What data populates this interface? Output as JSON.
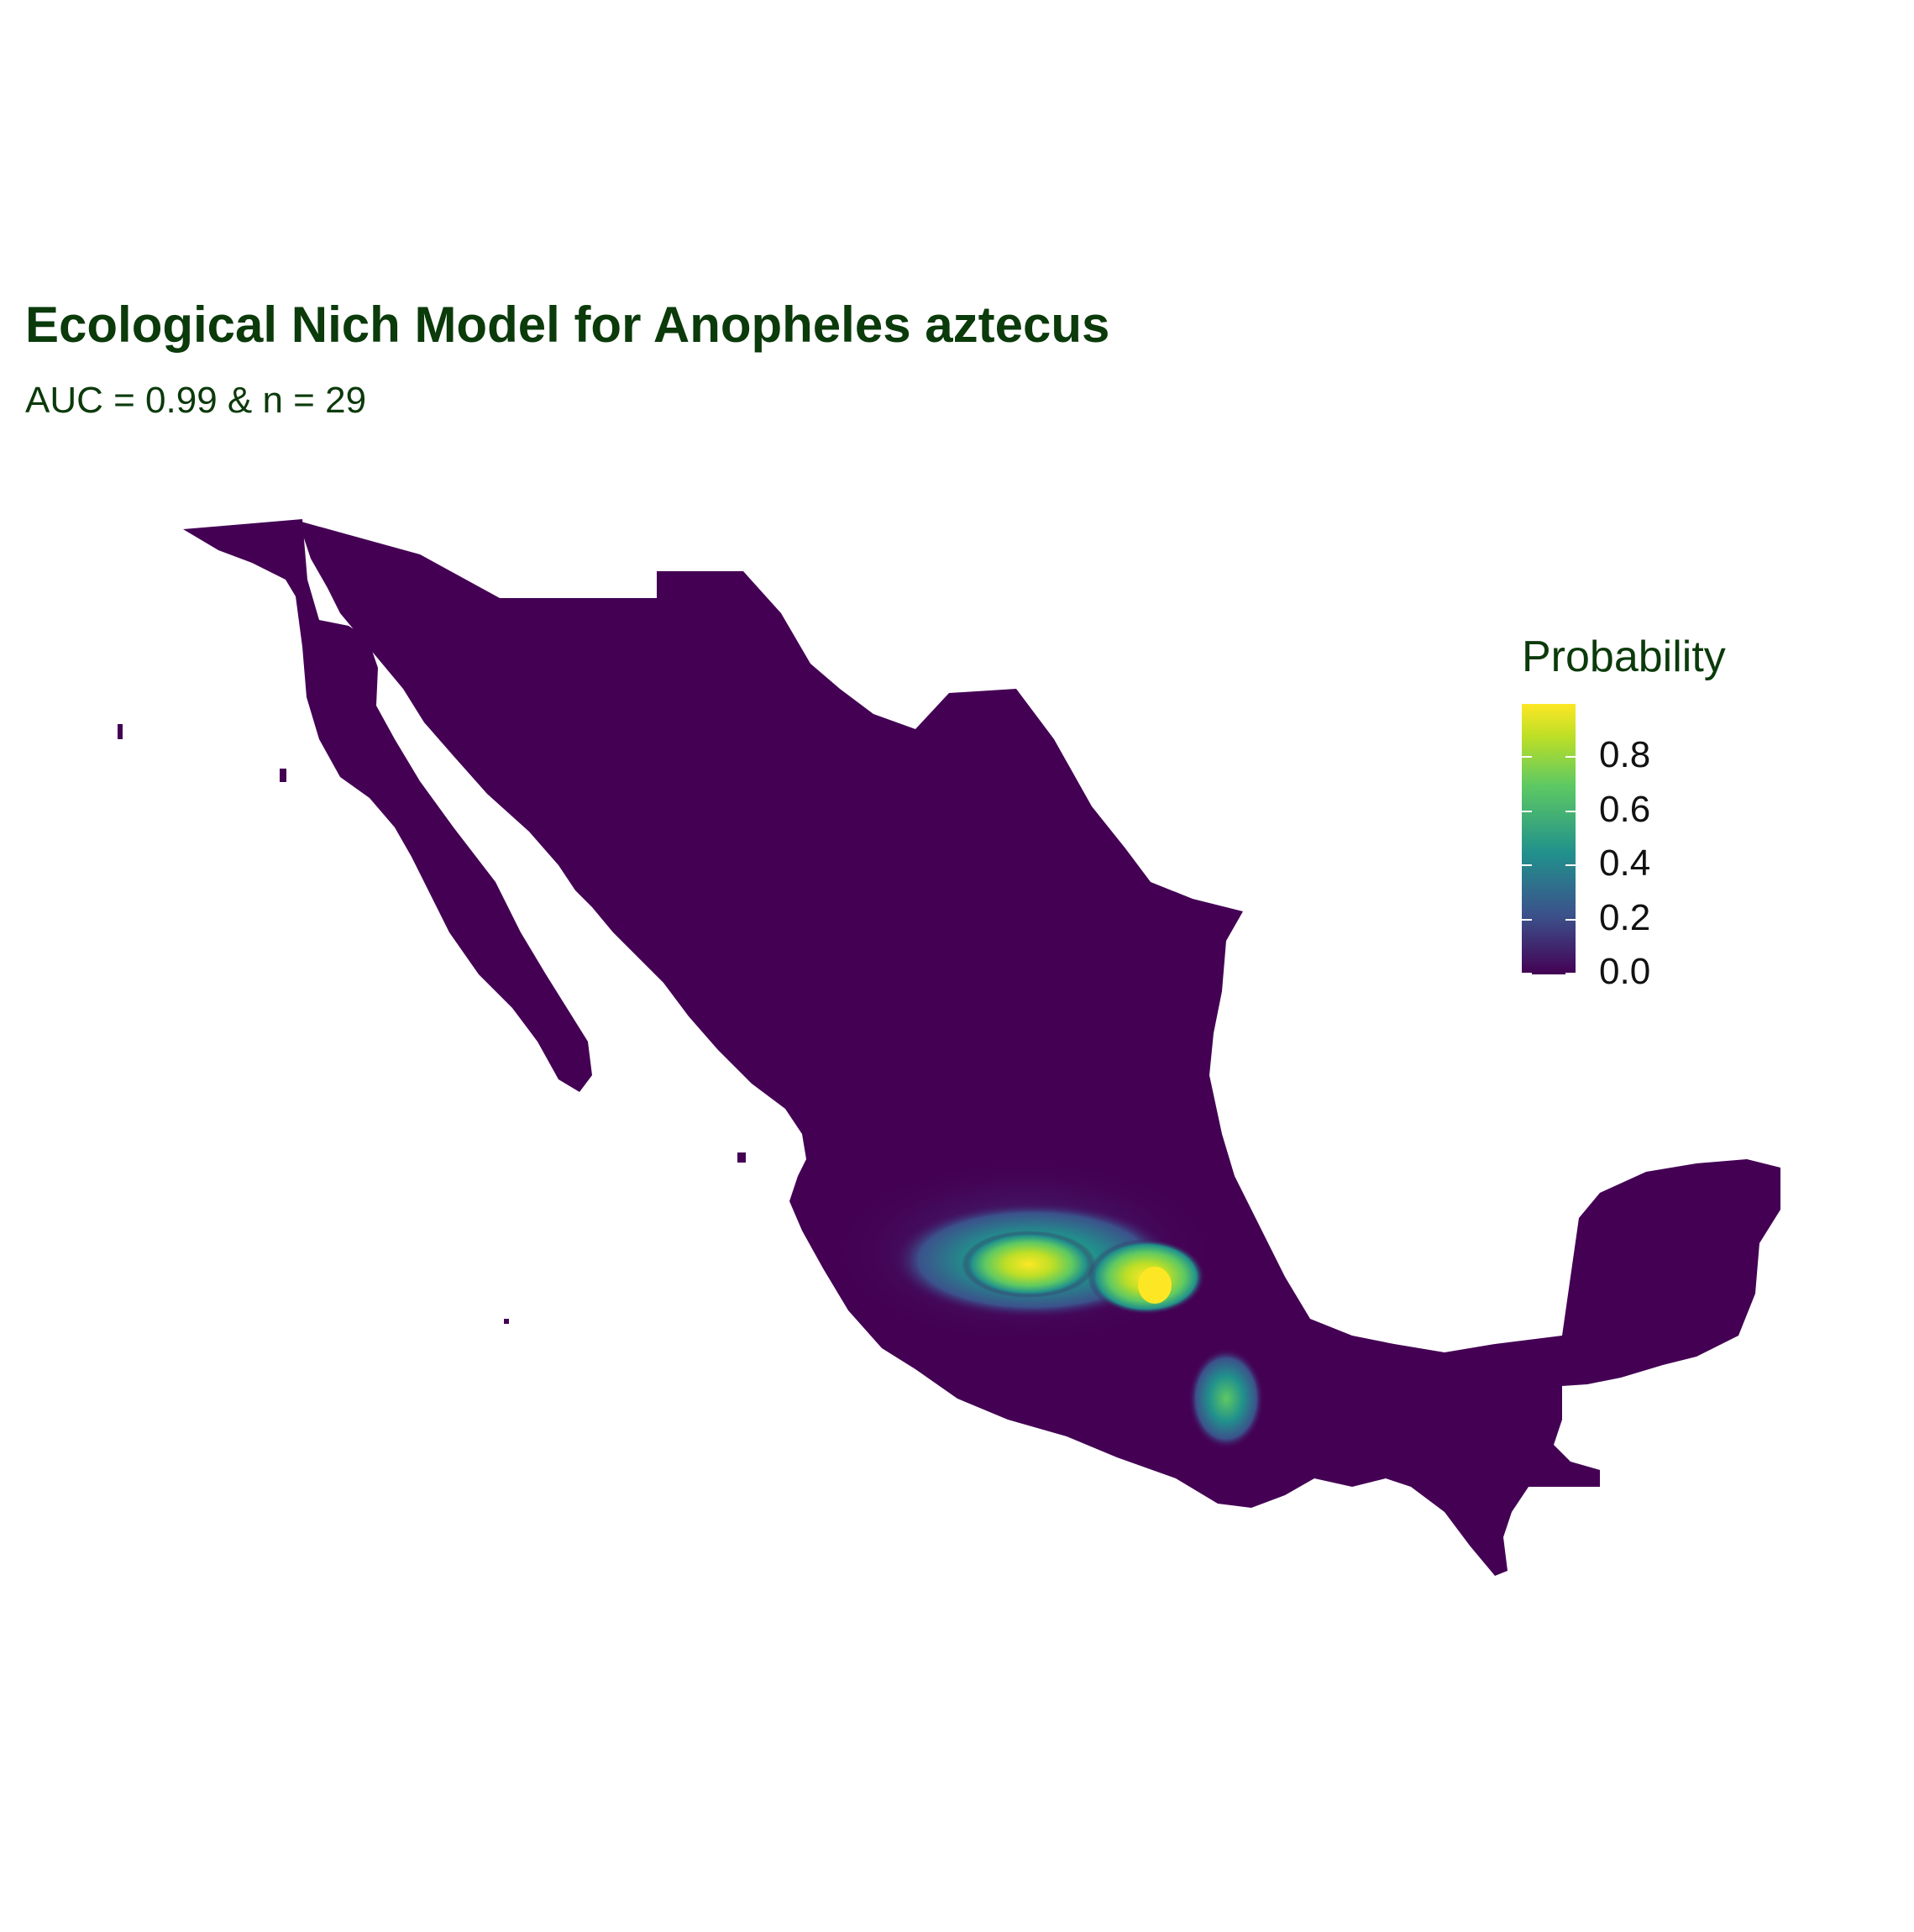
{
  "title": "Ecological Nich Model for Anopheles aztecus",
  "subtitle": "AUC = 0.99 & n = 29",
  "legend": {
    "title": "Probability",
    "ticks": [
      {
        "label": "0.0",
        "value": 0.0
      },
      {
        "label": "0.2",
        "value": 0.2
      },
      {
        "label": "0.4",
        "value": 0.4
      },
      {
        "label": "0.6",
        "value": 0.6
      },
      {
        "label": "0.8",
        "value": 0.8
      }
    ],
    "range": [
      0,
      1
    ],
    "palette": "viridis",
    "colors": [
      "#440154",
      "#3b528b",
      "#21918c",
      "#5ec962",
      "#bddf26",
      "#fde725"
    ]
  },
  "map": {
    "region": "Mexico",
    "background_color": "#440154"
  }
}
